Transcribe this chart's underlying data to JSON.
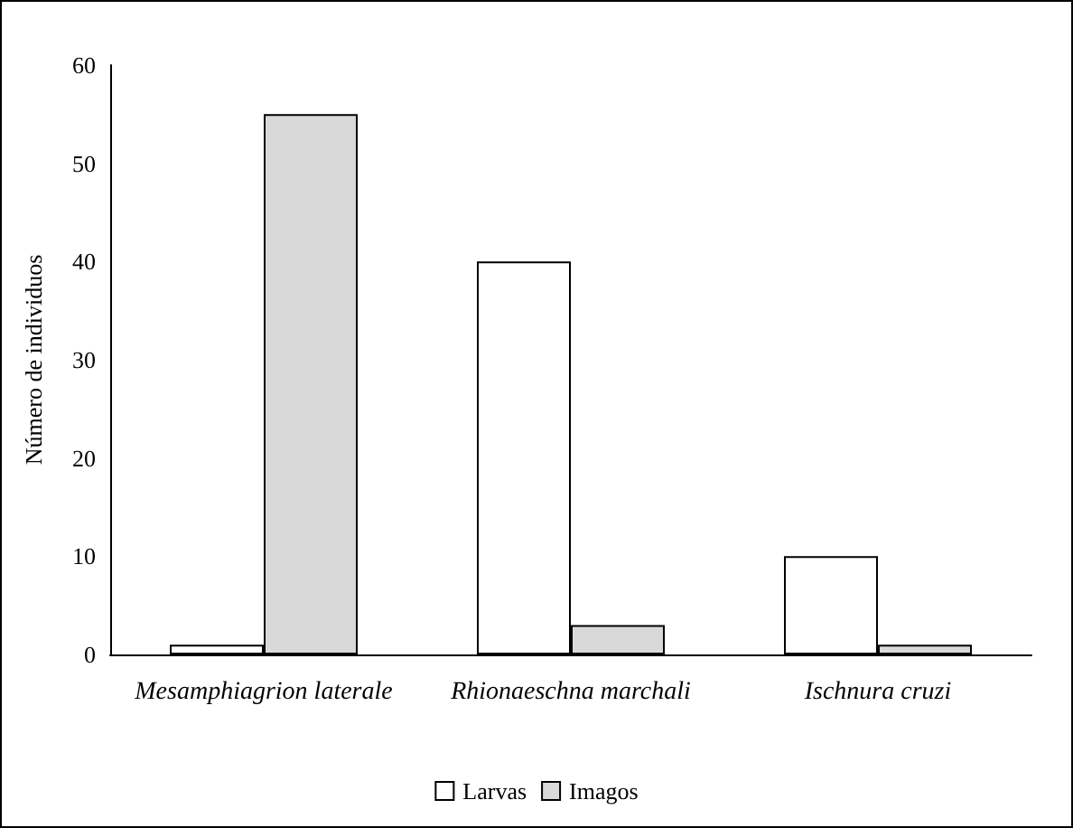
{
  "chart_data": {
    "type": "bar",
    "ylabel": "Número de individuos",
    "categories": [
      "Mesamphiagrion laterale",
      "Rhionaeschna marchali",
      "Ischnura cruzi"
    ],
    "series": [
      {
        "name": "Larvas",
        "color": "#ffffff",
        "values": [
          1,
          40,
          10
        ]
      },
      {
        "name": "Imagos",
        "color": "#d9d9d9",
        "values": [
          55,
          3,
          1
        ]
      }
    ],
    "ylim": [
      0,
      60
    ],
    "yticks": [
      0,
      10,
      20,
      30,
      40,
      50,
      60
    ],
    "grid": false,
    "legend": "bottom"
  }
}
